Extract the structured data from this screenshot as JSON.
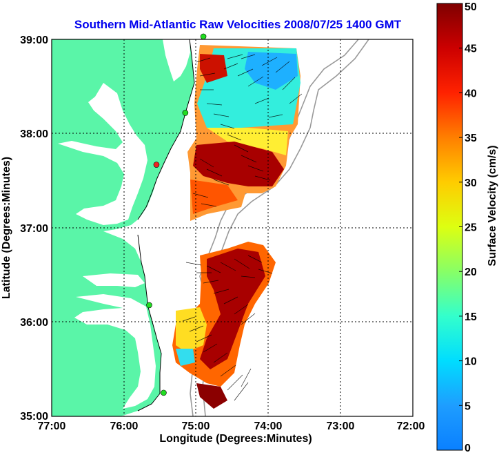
{
  "chart_data": {
    "type": "heatmap",
    "title": "Southern Mid-Atlantic Raw Velocities 2008/07/25 1400 GMT",
    "xlabel": "Longitude (Degrees:Minutes)",
    "ylabel": "Latitude (Degrees:Minutes)",
    "colorbar_label": "Surface Velocity (cm/s)",
    "x_ticks": [
      "77:00",
      "76:00",
      "75:00",
      "74:00",
      "73:00",
      "72:00"
    ],
    "y_ticks": [
      "39:00",
      "38:00",
      "37:00",
      "36:00",
      "35:00"
    ],
    "colorbar_ticks": [
      "0",
      "5",
      "10",
      "15",
      "20",
      "25",
      "30",
      "35",
      "40",
      "45",
      "50"
    ],
    "xlim": [
      -77,
      -72
    ],
    "ylim": [
      35,
      39
    ],
    "clim": [
      0,
      50
    ],
    "grid": true,
    "colors": {
      "land": "#5af5a8",
      "water": "#ffffff",
      "title": "#0000ee",
      "bathymetry": "#999999",
      "site_active": "#22dd22",
      "site_inactive": "#ee2222"
    },
    "stations": [
      {
        "lon": -74.9,
        "lat": 39.03,
        "status": "active"
      },
      {
        "lon": -75.15,
        "lat": 38.22,
        "status": "active"
      },
      {
        "lon": -75.55,
        "lat": 37.67,
        "status": "inactive"
      },
      {
        "lon": -75.65,
        "lat": 36.18,
        "status": "active"
      },
      {
        "lon": -75.45,
        "lat": 35.25,
        "status": "active"
      }
    ]
  }
}
